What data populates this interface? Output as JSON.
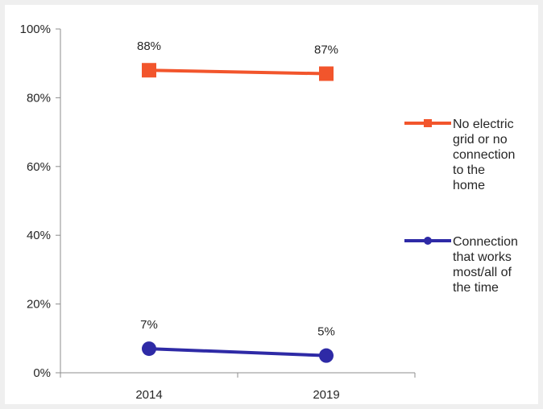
{
  "chart_data": {
    "type": "line",
    "categories": [
      "2014",
      "2019"
    ],
    "y_ticks": [
      "0%",
      "20%",
      "40%",
      "60%",
      "80%",
      "100%"
    ],
    "ylim": [
      0,
      100
    ],
    "grid": false,
    "legend_position": "right",
    "series": [
      {
        "name": "No electric grid or no connection to the home",
        "legend_lines": [
          "No electric",
          "grid or no",
          "connection",
          "to the",
          "home"
        ],
        "values": [
          88,
          87
        ],
        "labels": [
          "88%",
          "87%"
        ],
        "color": "#f2552c",
        "marker": "square"
      },
      {
        "name": "Connection that works most/all of the time",
        "legend_lines": [
          "Connection",
          "that works",
          "most/all of",
          "the time"
        ],
        "values": [
          7,
          5
        ],
        "labels": [
          "7%",
          "5%"
        ],
        "color": "#2e2aa6",
        "marker": "circle"
      }
    ]
  }
}
